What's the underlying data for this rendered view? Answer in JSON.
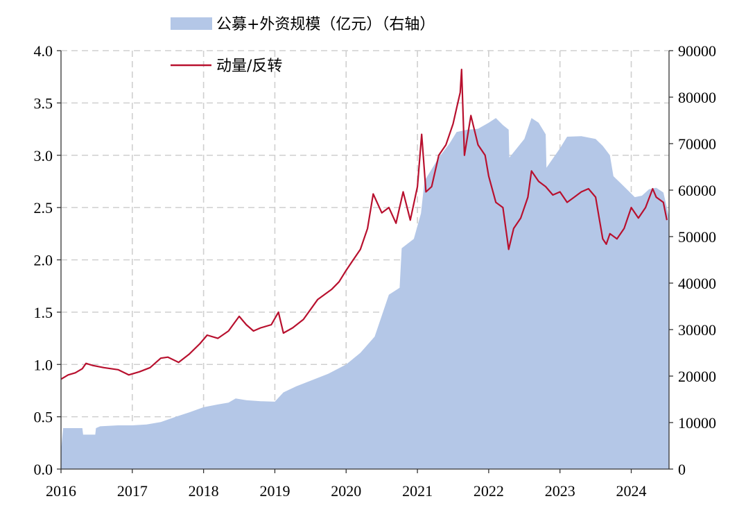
{
  "chart_data": {
    "type": "area+line",
    "grid": true,
    "legend_position": "top",
    "x_tick_labels": [
      "2016",
      "2017",
      "2018",
      "2019",
      "2020",
      "2021",
      "2022",
      "2023",
      "2024"
    ],
    "x_range": [
      2016.0,
      2024.53
    ],
    "y_left": {
      "range": [
        0,
        4.0
      ],
      "tick_labels": [
        "0.0",
        "0.5",
        "1.0",
        "1.5",
        "2.0",
        "2.5",
        "3.0",
        "3.5",
        "4.0"
      ]
    },
    "y_right": {
      "range": [
        0,
        90000
      ],
      "tick_labels": [
        "0",
        "10000",
        "20000",
        "30000",
        "40000",
        "50000",
        "60000",
        "70000",
        "80000",
        "90000"
      ]
    },
    "series": [
      {
        "name": "公募+外资规模（亿元）（右轴）",
        "type": "area",
        "axis": "right",
        "color": "#b4c7e7",
        "points": [
          [
            2016.0,
            4000
          ],
          [
            2016.03,
            8800
          ],
          [
            2016.3,
            8800
          ],
          [
            2016.31,
            7400
          ],
          [
            2016.48,
            7400
          ],
          [
            2016.49,
            8800
          ],
          [
            2016.55,
            9200
          ],
          [
            2016.8,
            9400
          ],
          [
            2017.0,
            9400
          ],
          [
            2017.2,
            9600
          ],
          [
            2017.4,
            10100
          ],
          [
            2017.6,
            11200
          ],
          [
            2017.8,
            12200
          ],
          [
            2018.0,
            13300
          ],
          [
            2018.2,
            13900
          ],
          [
            2018.35,
            14300
          ],
          [
            2018.45,
            15200
          ],
          [
            2018.6,
            14800
          ],
          [
            2018.8,
            14600
          ],
          [
            2019.0,
            14500
          ],
          [
            2019.12,
            16500
          ],
          [
            2019.3,
            17800
          ],
          [
            2019.5,
            19000
          ],
          [
            2019.75,
            20500
          ],
          [
            2020.0,
            22500
          ],
          [
            2020.2,
            25000
          ],
          [
            2020.4,
            28500
          ],
          [
            2020.5,
            33000
          ],
          [
            2020.6,
            37500
          ],
          [
            2020.75,
            39000
          ],
          [
            2020.78,
            47500
          ],
          [
            2020.95,
            49500
          ],
          [
            2021.05,
            55000
          ],
          [
            2021.1,
            62000
          ],
          [
            2021.3,
            67000
          ],
          [
            2021.45,
            70000
          ],
          [
            2021.55,
            72500
          ],
          [
            2021.7,
            73000
          ],
          [
            2021.85,
            73200
          ],
          [
            2022.0,
            74500
          ],
          [
            2022.1,
            75500
          ],
          [
            2022.2,
            74000
          ],
          [
            2022.28,
            73000
          ],
          [
            2022.29,
            67000
          ],
          [
            2022.5,
            71000
          ],
          [
            2022.6,
            75500
          ],
          [
            2022.7,
            74500
          ],
          [
            2022.8,
            72000
          ],
          [
            2022.81,
            64800
          ],
          [
            2023.0,
            69000
          ],
          [
            2023.1,
            71500
          ],
          [
            2023.3,
            71600
          ],
          [
            2023.5,
            71000
          ],
          [
            2023.6,
            69500
          ],
          [
            2023.7,
            67500
          ],
          [
            2023.75,
            63000
          ],
          [
            2023.85,
            61500
          ],
          [
            2023.95,
            60000
          ],
          [
            2024.05,
            58500
          ],
          [
            2024.15,
            58800
          ],
          [
            2024.25,
            60200
          ],
          [
            2024.35,
            60500
          ],
          [
            2024.45,
            59500
          ],
          [
            2024.53,
            54300
          ]
        ]
      },
      {
        "name": "动量/反转",
        "type": "line",
        "axis": "left",
        "color": "#b8102e",
        "points": [
          [
            2016.0,
            0.86
          ],
          [
            2016.1,
            0.9
          ],
          [
            2016.2,
            0.92
          ],
          [
            2016.3,
            0.96
          ],
          [
            2016.35,
            1.01
          ],
          [
            2016.45,
            0.99
          ],
          [
            2016.6,
            0.97
          ],
          [
            2016.8,
            0.95
          ],
          [
            2016.95,
            0.9
          ],
          [
            2017.1,
            0.93
          ],
          [
            2017.25,
            0.97
          ],
          [
            2017.4,
            1.06
          ],
          [
            2017.5,
            1.07
          ],
          [
            2017.65,
            1.02
          ],
          [
            2017.8,
            1.1
          ],
          [
            2017.95,
            1.2
          ],
          [
            2018.05,
            1.28
          ],
          [
            2018.2,
            1.25
          ],
          [
            2018.35,
            1.32
          ],
          [
            2018.5,
            1.46
          ],
          [
            2018.6,
            1.38
          ],
          [
            2018.7,
            1.32
          ],
          [
            2018.8,
            1.35
          ],
          [
            2018.95,
            1.38
          ],
          [
            2019.05,
            1.5
          ],
          [
            2019.12,
            1.3
          ],
          [
            2019.25,
            1.35
          ],
          [
            2019.4,
            1.43
          ],
          [
            2019.6,
            1.62
          ],
          [
            2019.8,
            1.72
          ],
          [
            2019.9,
            1.79
          ],
          [
            2020.0,
            1.9
          ],
          [
            2020.1,
            2.0
          ],
          [
            2020.2,
            2.1
          ],
          [
            2020.3,
            2.3
          ],
          [
            2020.38,
            2.63
          ],
          [
            2020.5,
            2.45
          ],
          [
            2020.6,
            2.5
          ],
          [
            2020.7,
            2.35
          ],
          [
            2020.8,
            2.65
          ],
          [
            2020.9,
            2.38
          ],
          [
            2021.0,
            2.7
          ],
          [
            2021.06,
            3.2
          ],
          [
            2021.12,
            2.65
          ],
          [
            2021.2,
            2.7
          ],
          [
            2021.3,
            3.0
          ],
          [
            2021.4,
            3.1
          ],
          [
            2021.5,
            3.3
          ],
          [
            2021.55,
            3.45
          ],
          [
            2021.6,
            3.6
          ],
          [
            2021.62,
            3.82
          ],
          [
            2021.66,
            3.0
          ],
          [
            2021.75,
            3.38
          ],
          [
            2021.85,
            3.1
          ],
          [
            2021.95,
            3.0
          ],
          [
            2022.0,
            2.8
          ],
          [
            2022.1,
            2.55
          ],
          [
            2022.2,
            2.5
          ],
          [
            2022.28,
            2.1
          ],
          [
            2022.35,
            2.3
          ],
          [
            2022.45,
            2.4
          ],
          [
            2022.55,
            2.6
          ],
          [
            2022.6,
            2.85
          ],
          [
            2022.7,
            2.75
          ],
          [
            2022.8,
            2.7
          ],
          [
            2022.9,
            2.62
          ],
          [
            2023.0,
            2.65
          ],
          [
            2023.1,
            2.55
          ],
          [
            2023.2,
            2.6
          ],
          [
            2023.3,
            2.65
          ],
          [
            2023.4,
            2.68
          ],
          [
            2023.5,
            2.6
          ],
          [
            2023.55,
            2.4
          ],
          [
            2023.6,
            2.2
          ],
          [
            2023.65,
            2.15
          ],
          [
            2023.7,
            2.25
          ],
          [
            2023.8,
            2.2
          ],
          [
            2023.9,
            2.3
          ],
          [
            2024.0,
            2.5
          ],
          [
            2024.1,
            2.4
          ],
          [
            2024.2,
            2.5
          ],
          [
            2024.3,
            2.68
          ],
          [
            2024.35,
            2.6
          ],
          [
            2024.45,
            2.55
          ],
          [
            2024.5,
            2.38
          ]
        ]
      }
    ]
  }
}
